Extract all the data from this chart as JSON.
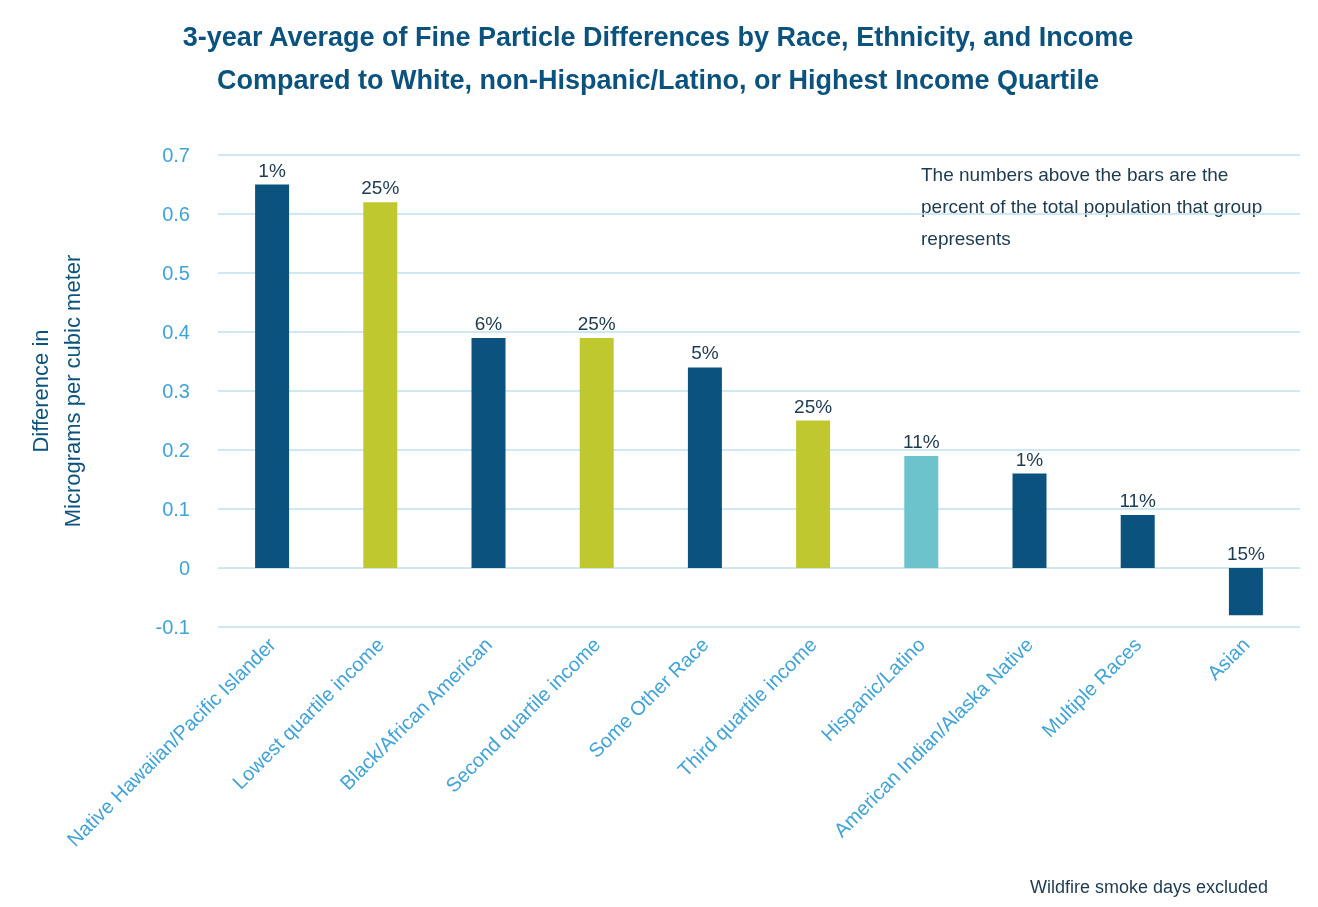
{
  "chart_data": {
    "type": "bar",
    "title": "3-year Average of Fine Particle Differences by Race, Ethnicity, and Income\nCompared to White, non-Hispanic/Latino, or Highest Income Quartile",
    "ylabel": "Difference in\nMicrograms per cubic meter",
    "categories": [
      "Native Hawaiian/Pacific Islander",
      "Lowest quartile income",
      "Black/African American",
      "Second quartile income",
      "Some Other Race",
      "Third quartile income",
      "Hispanic/Latino",
      "American Indian/Alaska Native",
      "Multiple Races",
      "Asian"
    ],
    "values": [
      0.65,
      0.62,
      0.39,
      0.39,
      0.34,
      0.25,
      0.19,
      0.16,
      0.09,
      -0.08
    ],
    "colors": [
      "#0b537e",
      "#bfc92f",
      "#0b537e",
      "#bfc92f",
      "#0b537e",
      "#bfc92f",
      "#6cc3cc",
      "#0b537e",
      "#0b537e",
      "#0b537e"
    ],
    "ylim": [
      -0.1,
      0.7
    ],
    "yticks": [
      -0.1,
      0,
      0.1,
      0.2,
      0.3,
      0.4,
      0.5,
      0.6,
      0.7
    ],
    "grid": "y",
    "annotations": [
      "The numbers above the bars are the percent of the total population that group represents",
      "Wildfire smoke days excluded",
      {
        "text": "1%",
        "x": "Native Hawaiian/Pacific Islander",
        "y": 0.65
      },
      {
        "text": "25%",
        "x": "Lowest quartile income",
        "y": 0.62
      },
      {
        "text": "6%",
        "x": "Black/African American",
        "y": 0.39
      },
      {
        "text": "25%",
        "x": "Second quartile income",
        "y": 0.39
      },
      {
        "text": "5%",
        "x": "Some Other Race",
        "y": 0.34
      },
      {
        "text": "25%",
        "x": "Third quartile income",
        "y": 0.25
      },
      {
        "text": "11%",
        "x": "Hispanic/Latino",
        "y": 0.19
      },
      {
        "text": "1%",
        "x": "American Indian/Alaska Native",
        "y": 0.16
      },
      {
        "text": "11%",
        "x": "Multiple Races",
        "y": 0.09
      },
      {
        "text": "15%",
        "x": "Asian",
        "y": 0
      }
    ]
  }
}
